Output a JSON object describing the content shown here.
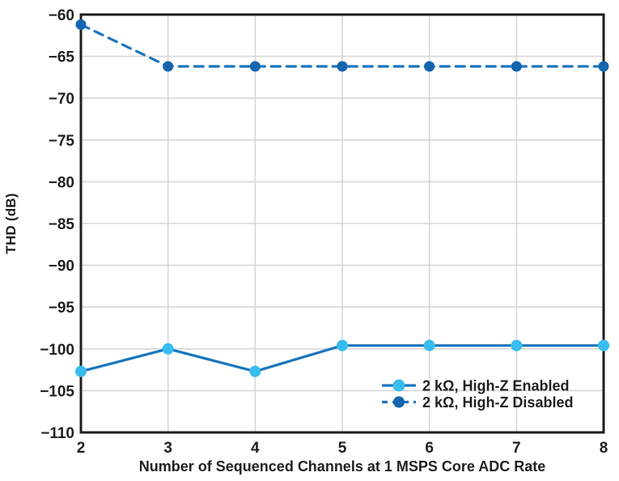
{
  "chart_data": {
    "type": "line",
    "title": "",
    "xlabel": "Number of Sequenced Channels at 1 MSPS Core ADC Rate",
    "ylabel": "THD (dB)",
    "x": [
      2,
      3,
      4,
      5,
      6,
      7,
      8
    ],
    "xlim": [
      2,
      8
    ],
    "ylim": [
      -110,
      -60
    ],
    "grid": true,
    "legend_position": "inside-bottom-right",
    "xtick_labels": [
      "2",
      "3",
      "4",
      "5",
      "6",
      "7",
      "8"
    ],
    "ytick_values": [
      -60,
      -65,
      -70,
      -75,
      -80,
      -85,
      -90,
      -95,
      -100,
      -105,
      -110
    ],
    "ytick_labels": [
      "−60",
      "−65",
      "−70",
      "−75",
      "−80",
      "−85",
      "−90",
      "−95",
      "−100",
      "−105",
      "−110"
    ],
    "series": [
      {
        "name": "2 kΩ, High-Z Enabled",
        "values": [
          -102.7,
          -100.0,
          -102.7,
          -99.6,
          -99.6,
          -99.6,
          -99.6
        ],
        "line_color": "#1b76bd",
        "marker_color": "#38bdee",
        "dash": false
      },
      {
        "name": "2 kΩ, High-Z Disabled",
        "values": [
          -61.2,
          -66.2,
          -66.2,
          -66.2,
          -66.2,
          -66.2,
          -66.2
        ],
        "line_color": "#1b76bd",
        "marker_color": "#1465ad",
        "dash": true
      }
    ],
    "colors": {
      "background": "#ffffff",
      "grid": "#d7d7d7",
      "axis": "#1f1d1e",
      "text": "#231f20"
    }
  }
}
